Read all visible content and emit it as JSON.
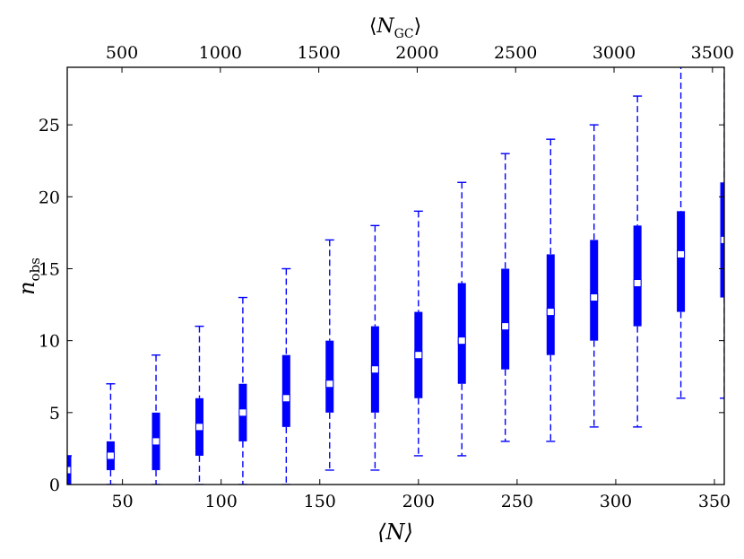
{
  "chart_data": {
    "type": "box",
    "xlabel": "⟨N⟩",
    "xlabel_top": "⟨N_GC⟩",
    "ylabel": "n_obs",
    "xlim": [
      22,
      355
    ],
    "ylim": [
      0,
      29
    ],
    "top_xlim": [
      222,
      3560
    ],
    "xticks": [
      50,
      100,
      150,
      200,
      250,
      300,
      350
    ],
    "yticks": [
      0,
      5,
      10,
      15,
      20,
      25
    ],
    "top_xticks": [
      500,
      1000,
      1500,
      2000,
      2500,
      3000,
      3500
    ],
    "box_color": "#0000ff",
    "median_color": "#ffffff",
    "boxes": [
      {
        "x": 22,
        "whisker_low": 0,
        "q1": 0,
        "median": 1,
        "q3": 2,
        "whisker_high": 2
      },
      {
        "x": 44,
        "whisker_low": 0,
        "q1": 1,
        "median": 2,
        "q3": 3,
        "whisker_high": 7
      },
      {
        "x": 67,
        "whisker_low": 0,
        "q1": 1,
        "median": 3,
        "q3": 5,
        "whisker_high": 9
      },
      {
        "x": 89,
        "whisker_low": 0,
        "q1": 2,
        "median": 4,
        "q3": 6,
        "whisker_high": 11
      },
      {
        "x": 111,
        "whisker_low": 0,
        "q1": 3,
        "median": 5,
        "q3": 7,
        "whisker_high": 13
      },
      {
        "x": 133,
        "whisker_low": 0,
        "q1": 4,
        "median": 6,
        "q3": 9,
        "whisker_high": 15
      },
      {
        "x": 155,
        "whisker_low": 1,
        "q1": 5,
        "median": 7,
        "q3": 10,
        "whisker_high": 17
      },
      {
        "x": 178,
        "whisker_low": 1,
        "q1": 5,
        "median": 8,
        "q3": 11,
        "whisker_high": 18
      },
      {
        "x": 200,
        "whisker_low": 2,
        "q1": 6,
        "median": 9,
        "q3": 12,
        "whisker_high": 19
      },
      {
        "x": 222,
        "whisker_low": 2,
        "q1": 7,
        "median": 10,
        "q3": 14,
        "whisker_high": 21
      },
      {
        "x": 244,
        "whisker_low": 3,
        "q1": 8,
        "median": 11,
        "q3": 15,
        "whisker_high": 23
      },
      {
        "x": 267,
        "whisker_low": 3,
        "q1": 9,
        "median": 12,
        "q3": 16,
        "whisker_high": 24
      },
      {
        "x": 289,
        "whisker_low": 4,
        "q1": 10,
        "median": 13,
        "q3": 17,
        "whisker_high": 25
      },
      {
        "x": 311,
        "whisker_low": 4,
        "q1": 11,
        "median": 14,
        "q3": 18,
        "whisker_high": 27
      },
      {
        "x": 333,
        "whisker_low": 6,
        "q1": 12,
        "median": 16,
        "q3": 19,
        "whisker_high": 30
      },
      {
        "x": 355,
        "whisker_low": 6,
        "q1": 13,
        "median": 17,
        "q3": 21,
        "whisker_high": 30
      }
    ]
  }
}
